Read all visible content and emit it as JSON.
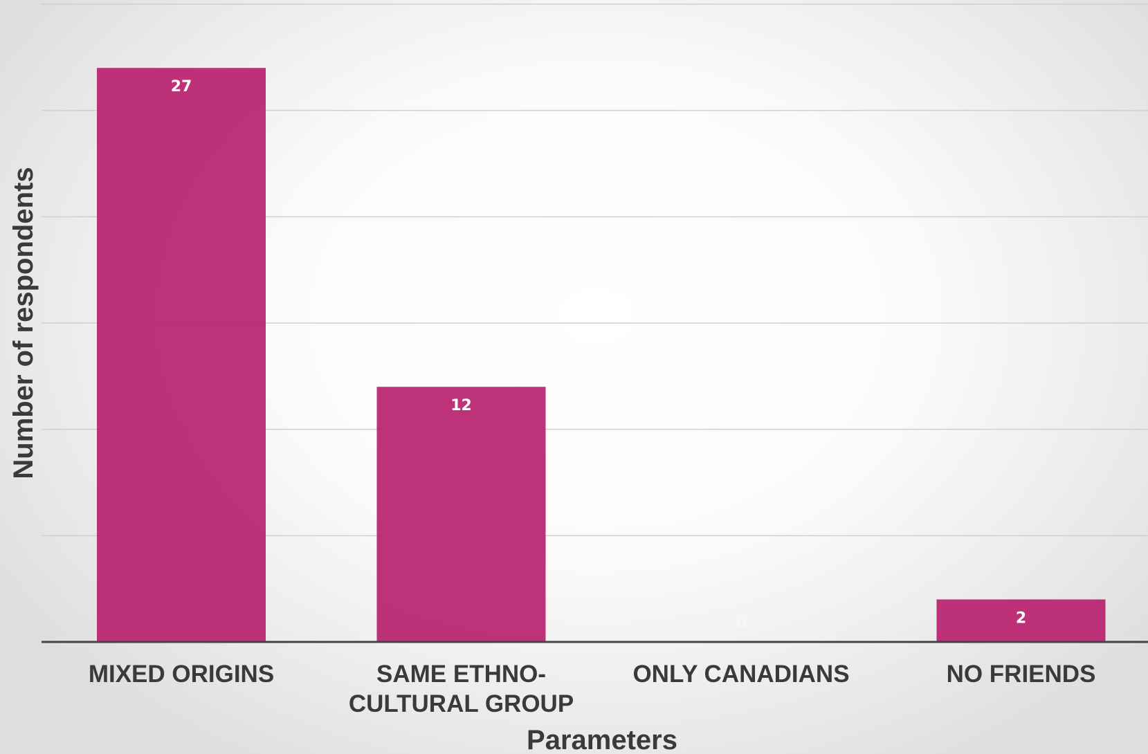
{
  "chart_data": {
    "type": "bar",
    "title": "",
    "xlabel": "Parameters",
    "ylabel": "Number of respondents",
    "categories": [
      [
        "MIXED ORIGINS"
      ],
      [
        "SAME ETHNO-",
        "CULTURAL GROUP"
      ],
      [
        "ONLY CANADIANS"
      ],
      [
        "NO FRIENDS"
      ]
    ],
    "values": [
      27,
      12,
      0,
      2
    ],
    "data_labels": [
      "27",
      "12",
      "0",
      "2"
    ],
    "ylim": [
      0,
      30
    ],
    "gridlines": [
      5,
      10,
      15,
      20,
      25,
      30
    ],
    "grid": true,
    "y_tick_labels_visible": false,
    "legend": "none",
    "colors": {
      "bar": "#b8226f",
      "bar_label": "#ffffff",
      "axis": "#444444",
      "grid": "#cfcfcf",
      "text": "#3a3a3a"
    }
  }
}
